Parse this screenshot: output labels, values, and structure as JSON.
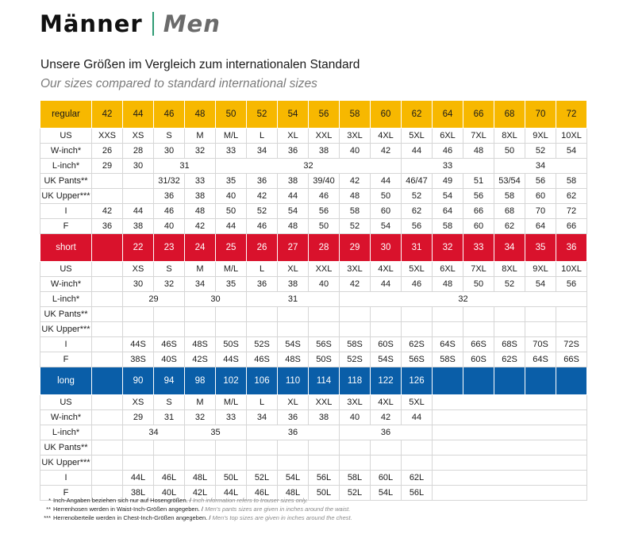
{
  "header": {
    "title_de": "Männer",
    "title_en": "Men",
    "subtitle_de": "Unsere Größen im Vergleich zum internationalen Standard",
    "subtitle_en": "Our sizes compared to standard international sizes"
  },
  "colors": {
    "regular": "#f7b800",
    "short": "#d9122c",
    "long": "#0a5ea8",
    "accent": "#2e9b74"
  },
  "sections": [
    {
      "key": "regular",
      "label": "regular",
      "header": [
        "42",
        "44",
        "46",
        "48",
        "50",
        "52",
        "54",
        "56",
        "58",
        "60",
        "62",
        "64",
        "66",
        "68",
        "70",
        "72"
      ],
      "rows": [
        {
          "label": "US",
          "cells": [
            {
              "t": "XXS"
            },
            {
              "t": "XS"
            },
            {
              "t": "S"
            },
            {
              "t": "M"
            },
            {
              "t": "M/L"
            },
            {
              "t": "L"
            },
            {
              "t": "XL"
            },
            {
              "t": "XXL"
            },
            {
              "t": "3XL"
            },
            {
              "t": "4XL"
            },
            {
              "t": "5XL"
            },
            {
              "t": "6XL"
            },
            {
              "t": "7XL"
            },
            {
              "t": "8XL"
            },
            {
              "t": "9XL"
            },
            {
              "t": "10XL"
            }
          ]
        },
        {
          "label": "W-inch*",
          "cells": [
            {
              "t": "26"
            },
            {
              "t": "28"
            },
            {
              "t": "30"
            },
            {
              "t": "32"
            },
            {
              "t": "33"
            },
            {
              "t": "34"
            },
            {
              "t": "36"
            },
            {
              "t": "38"
            },
            {
              "t": "40"
            },
            {
              "t": "42"
            },
            {
              "t": "44"
            },
            {
              "t": "46"
            },
            {
              "t": "48"
            },
            {
              "t": "50"
            },
            {
              "t": "52"
            },
            {
              "t": "54"
            }
          ]
        },
        {
          "label": "L-inch*",
          "cells": [
            {
              "t": "29"
            },
            {
              "t": "30"
            },
            {
              "t": "31",
              "span": 2
            },
            {
              "t": "32",
              "span": 6
            },
            {
              "t": "33",
              "span": 3
            },
            {
              "t": "34",
              "span": 3
            }
          ]
        },
        {
          "label": "UK Pants**",
          "cells": [
            {
              "t": ""
            },
            {
              "t": ""
            },
            {
              "t": "31/32"
            },
            {
              "t": "33"
            },
            {
              "t": "35"
            },
            {
              "t": "36"
            },
            {
              "t": "38"
            },
            {
              "t": "39/40"
            },
            {
              "t": "42"
            },
            {
              "t": "44"
            },
            {
              "t": "46/47"
            },
            {
              "t": "49"
            },
            {
              "t": "51"
            },
            {
              "t": "53/54"
            },
            {
              "t": "56"
            },
            {
              "t": "58"
            }
          ]
        },
        {
          "label": "UK Upper***",
          "cells": [
            {
              "t": ""
            },
            {
              "t": ""
            },
            {
              "t": "36"
            },
            {
              "t": "38"
            },
            {
              "t": "40"
            },
            {
              "t": "42"
            },
            {
              "t": "44"
            },
            {
              "t": "46"
            },
            {
              "t": "48"
            },
            {
              "t": "50"
            },
            {
              "t": "52"
            },
            {
              "t": "54"
            },
            {
              "t": "56"
            },
            {
              "t": "58"
            },
            {
              "t": "60"
            },
            {
              "t": "62"
            }
          ]
        },
        {
          "label": "I",
          "cells": [
            {
              "t": "42"
            },
            {
              "t": "44"
            },
            {
              "t": "46"
            },
            {
              "t": "48"
            },
            {
              "t": "50"
            },
            {
              "t": "52"
            },
            {
              "t": "54"
            },
            {
              "t": "56"
            },
            {
              "t": "58"
            },
            {
              "t": "60"
            },
            {
              "t": "62"
            },
            {
              "t": "64"
            },
            {
              "t": "66"
            },
            {
              "t": "68"
            },
            {
              "t": "70"
            },
            {
              "t": "72"
            }
          ]
        },
        {
          "label": "F",
          "cells": [
            {
              "t": "36"
            },
            {
              "t": "38"
            },
            {
              "t": "40"
            },
            {
              "t": "42"
            },
            {
              "t": "44"
            },
            {
              "t": "46"
            },
            {
              "t": "48"
            },
            {
              "t": "50"
            },
            {
              "t": "52"
            },
            {
              "t": "54"
            },
            {
              "t": "56"
            },
            {
              "t": "58"
            },
            {
              "t": "60"
            },
            {
              "t": "62"
            },
            {
              "t": "64"
            },
            {
              "t": "66"
            }
          ]
        }
      ]
    },
    {
      "key": "short",
      "label": "short",
      "header": [
        "",
        "22",
        "23",
        "24",
        "25",
        "26",
        "27",
        "28",
        "29",
        "30",
        "31",
        "32",
        "33",
        "34",
        "35",
        "36"
      ],
      "rows": [
        {
          "label": "US",
          "cells": [
            {
              "t": ""
            },
            {
              "t": "XS"
            },
            {
              "t": "S"
            },
            {
              "t": "M"
            },
            {
              "t": "M/L"
            },
            {
              "t": "L"
            },
            {
              "t": "XL"
            },
            {
              "t": "XXL"
            },
            {
              "t": "3XL"
            },
            {
              "t": "4XL"
            },
            {
              "t": "5XL"
            },
            {
              "t": "6XL"
            },
            {
              "t": "7XL"
            },
            {
              "t": "8XL"
            },
            {
              "t": "9XL"
            },
            {
              "t": "10XL"
            }
          ]
        },
        {
          "label": "W-inch*",
          "cells": [
            {
              "t": ""
            },
            {
              "t": "30"
            },
            {
              "t": "32"
            },
            {
              "t": "34"
            },
            {
              "t": "35"
            },
            {
              "t": "36"
            },
            {
              "t": "38"
            },
            {
              "t": "40"
            },
            {
              "t": "42"
            },
            {
              "t": "44"
            },
            {
              "t": "46"
            },
            {
              "t": "48"
            },
            {
              "t": "50"
            },
            {
              "t": "52"
            },
            {
              "t": "54"
            },
            {
              "t": "56"
            }
          ]
        },
        {
          "label": "L-inch*",
          "cells": [
            {
              "t": ""
            },
            {
              "t": "29",
              "span": 2
            },
            {
              "t": "30",
              "span": 2
            },
            {
              "t": "31",
              "span": 3
            },
            {
              "t": "32",
              "span": 8
            }
          ]
        },
        {
          "label": "UK Pants**",
          "cells": [
            {
              "t": ""
            },
            {
              "t": ""
            },
            {
              "t": ""
            },
            {
              "t": ""
            },
            {
              "t": ""
            },
            {
              "t": ""
            },
            {
              "t": ""
            },
            {
              "t": ""
            },
            {
              "t": ""
            },
            {
              "t": ""
            },
            {
              "t": ""
            },
            {
              "t": ""
            },
            {
              "t": ""
            },
            {
              "t": ""
            },
            {
              "t": ""
            },
            {
              "t": ""
            }
          ]
        },
        {
          "label": "UK Upper***",
          "cells": [
            {
              "t": ""
            },
            {
              "t": ""
            },
            {
              "t": ""
            },
            {
              "t": ""
            },
            {
              "t": ""
            },
            {
              "t": ""
            },
            {
              "t": ""
            },
            {
              "t": ""
            },
            {
              "t": ""
            },
            {
              "t": ""
            },
            {
              "t": ""
            },
            {
              "t": ""
            },
            {
              "t": ""
            },
            {
              "t": ""
            },
            {
              "t": ""
            },
            {
              "t": ""
            }
          ]
        },
        {
          "label": "I",
          "cells": [
            {
              "t": ""
            },
            {
              "t": "44S"
            },
            {
              "t": "46S"
            },
            {
              "t": "48S"
            },
            {
              "t": "50S"
            },
            {
              "t": "52S"
            },
            {
              "t": "54S"
            },
            {
              "t": "56S"
            },
            {
              "t": "58S"
            },
            {
              "t": "60S"
            },
            {
              "t": "62S"
            },
            {
              "t": "64S"
            },
            {
              "t": "66S"
            },
            {
              "t": "68S"
            },
            {
              "t": "70S"
            },
            {
              "t": "72S"
            }
          ]
        },
        {
          "label": "F",
          "cells": [
            {
              "t": ""
            },
            {
              "t": "38S"
            },
            {
              "t": "40S"
            },
            {
              "t": "42S"
            },
            {
              "t": "44S"
            },
            {
              "t": "46S"
            },
            {
              "t": "48S"
            },
            {
              "t": "50S"
            },
            {
              "t": "52S"
            },
            {
              "t": "54S"
            },
            {
              "t": "56S"
            },
            {
              "t": "58S"
            },
            {
              "t": "60S"
            },
            {
              "t": "62S"
            },
            {
              "t": "64S"
            },
            {
              "t": "66S"
            }
          ]
        }
      ]
    },
    {
      "key": "long",
      "label": "long",
      "header": [
        "",
        "90",
        "94",
        "98",
        "102",
        "106",
        "110",
        "114",
        "118",
        "122",
        "126",
        "",
        "",
        "",
        "",
        ""
      ],
      "rows": [
        {
          "label": "US",
          "cells": [
            {
              "t": ""
            },
            {
              "t": "XS"
            },
            {
              "t": "S"
            },
            {
              "t": "M"
            },
            {
              "t": "M/L"
            },
            {
              "t": "L"
            },
            {
              "t": "XL"
            },
            {
              "t": "XXL"
            },
            {
              "t": "3XL"
            },
            {
              "t": "4XL"
            },
            {
              "t": "5XL"
            },
            {
              "t": "",
              "span": 5
            }
          ]
        },
        {
          "label": "W-inch*",
          "cells": [
            {
              "t": ""
            },
            {
              "t": "29"
            },
            {
              "t": "31"
            },
            {
              "t": "32"
            },
            {
              "t": "33"
            },
            {
              "t": "34"
            },
            {
              "t": "36"
            },
            {
              "t": "38"
            },
            {
              "t": "40"
            },
            {
              "t": "42"
            },
            {
              "t": "44"
            },
            {
              "t": "",
              "span": 5
            }
          ]
        },
        {
          "label": "L-inch*",
          "cells": [
            {
              "t": ""
            },
            {
              "t": "34",
              "span": 2
            },
            {
              "t": "35",
              "span": 2
            },
            {
              "t": "36",
              "span": 3
            },
            {
              "t": "36",
              "span": 3
            },
            {
              "t": "",
              "span": 5
            }
          ]
        },
        {
          "label": "UK Pants**",
          "cells": [
            {
              "t": ""
            },
            {
              "t": ""
            },
            {
              "t": ""
            },
            {
              "t": ""
            },
            {
              "t": ""
            },
            {
              "t": ""
            },
            {
              "t": ""
            },
            {
              "t": ""
            },
            {
              "t": ""
            },
            {
              "t": ""
            },
            {
              "t": ""
            },
            {
              "t": "",
              "span": 5
            }
          ]
        },
        {
          "label": "UK Upper***",
          "cells": [
            {
              "t": ""
            },
            {
              "t": ""
            },
            {
              "t": ""
            },
            {
              "t": ""
            },
            {
              "t": ""
            },
            {
              "t": ""
            },
            {
              "t": ""
            },
            {
              "t": ""
            },
            {
              "t": ""
            },
            {
              "t": ""
            },
            {
              "t": ""
            },
            {
              "t": "",
              "span": 5
            }
          ]
        },
        {
          "label": "I",
          "cells": [
            {
              "t": ""
            },
            {
              "t": "44L"
            },
            {
              "t": "46L"
            },
            {
              "t": "48L"
            },
            {
              "t": "50L"
            },
            {
              "t": "52L"
            },
            {
              "t": "54L"
            },
            {
              "t": "56L"
            },
            {
              "t": "58L"
            },
            {
              "t": "60L"
            },
            {
              "t": "62L"
            },
            {
              "t": "",
              "span": 5
            }
          ]
        },
        {
          "label": "F",
          "cells": [
            {
              "t": ""
            },
            {
              "t": "38L"
            },
            {
              "t": "40L"
            },
            {
              "t": "42L"
            },
            {
              "t": "44L"
            },
            {
              "t": "46L"
            },
            {
              "t": "48L"
            },
            {
              "t": "50L"
            },
            {
              "t": "52L"
            },
            {
              "t": "54L"
            },
            {
              "t": "56L"
            },
            {
              "t": "",
              "span": 5
            }
          ]
        }
      ]
    }
  ],
  "footnotes": [
    {
      "mark": "*",
      "de": "Inch-Angaben beziehen sich nur auf Hosengrößen.",
      "en": "Inch information refers to trouser sizes only."
    },
    {
      "mark": "**",
      "de": "Herrenhosen werden in Waist-Inch-Größen angegeben.",
      "en": "Men's pants sizes are given in inches around the waist."
    },
    {
      "mark": "***",
      "de": "Herrenoberteile werden in Chest-Inch-Größen angegeben.",
      "en": "Men's top sizes are given in inches around the chest."
    }
  ]
}
